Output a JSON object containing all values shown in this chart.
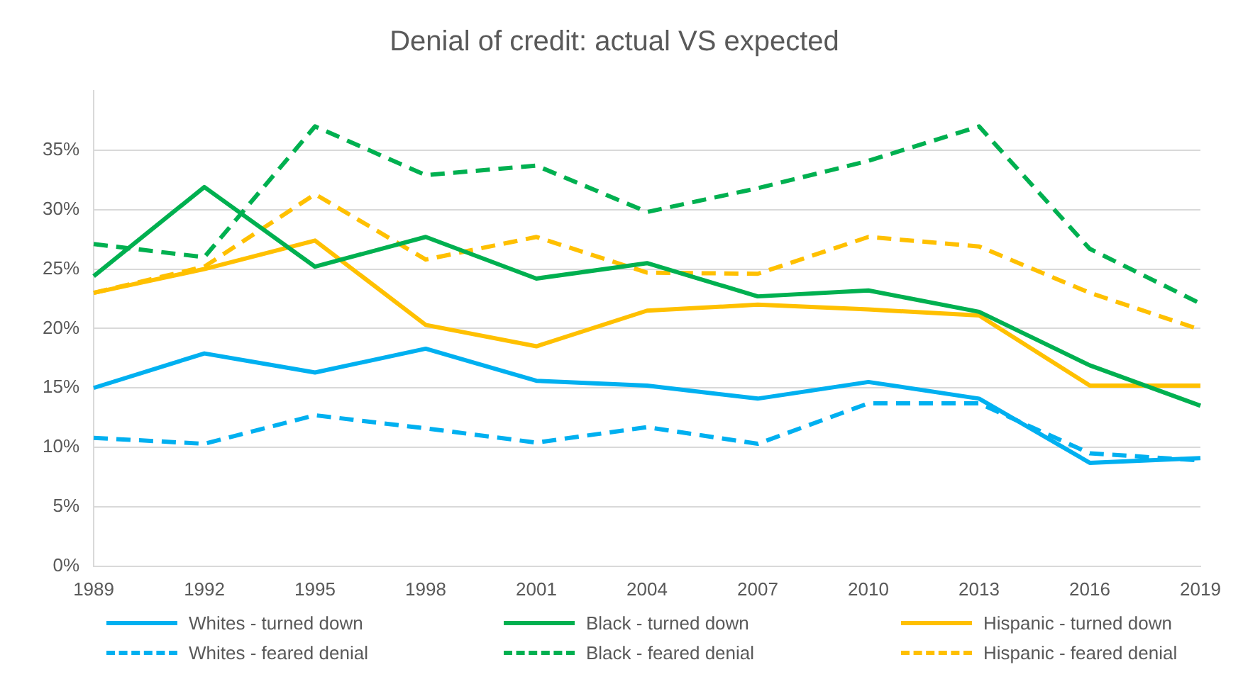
{
  "chart_data": {
    "type": "line",
    "title": "Denial of credit: actual VS expected",
    "categories": [
      "1989",
      "1992",
      "1995",
      "1998",
      "2001",
      "2004",
      "2007",
      "2010",
      "2013",
      "2016",
      "2019"
    ],
    "series": [
      {
        "name": "Whites - turned down",
        "color": "#00b0f0",
        "line_style": "solid",
        "values": [
          15.0,
          17.9,
          16.3,
          18.3,
          15.6,
          15.2,
          14.1,
          15.5,
          14.1,
          8.7,
          9.1
        ]
      },
      {
        "name": "Black - turned down",
        "color": "#00b050",
        "line_style": "solid",
        "values": [
          24.4,
          31.9,
          25.2,
          27.7,
          24.2,
          25.5,
          22.7,
          23.2,
          21.4,
          16.9,
          13.5
        ]
      },
      {
        "name": "Hispanic - turned down",
        "color": "#ffc000",
        "line_style": "solid",
        "values": [
          23.0,
          25.0,
          27.4,
          20.3,
          18.5,
          21.5,
          22.0,
          21.6,
          21.1,
          15.2,
          15.2
        ]
      },
      {
        "name": "Whites - feared denial",
        "color": "#00b0f0",
        "line_style": "dashed",
        "values": [
          10.8,
          10.3,
          12.7,
          11.6,
          10.4,
          11.7,
          10.3,
          13.7,
          13.7,
          9.5,
          8.9
        ]
      },
      {
        "name": "Black - feared denial",
        "color": "#00b050",
        "line_style": "dashed",
        "values": [
          27.1,
          26.0,
          37.0,
          32.9,
          33.7,
          29.8,
          31.8,
          34.1,
          37.0,
          26.7,
          22.1
        ]
      },
      {
        "name": "Hispanic - feared denial",
        "color": "#ffc000",
        "line_style": "dashed",
        "values": [
          23.0,
          25.2,
          31.3,
          25.8,
          27.7,
          24.7,
          24.6,
          27.7,
          26.9,
          23.0,
          19.9
        ]
      }
    ],
    "ylim": [
      0,
      40
    ],
    "yticks": [
      {
        "value": 0,
        "label": "0%"
      },
      {
        "value": 5,
        "label": "5%"
      },
      {
        "value": 10,
        "label": "10%"
      },
      {
        "value": 15,
        "label": "15%"
      },
      {
        "value": 20,
        "label": "20%"
      },
      {
        "value": 25,
        "label": "25%"
      },
      {
        "value": 30,
        "label": "30%"
      },
      {
        "value": 35,
        "label": "35%"
      }
    ],
    "grid": "y",
    "legend": "bottom",
    "marker": "none"
  }
}
